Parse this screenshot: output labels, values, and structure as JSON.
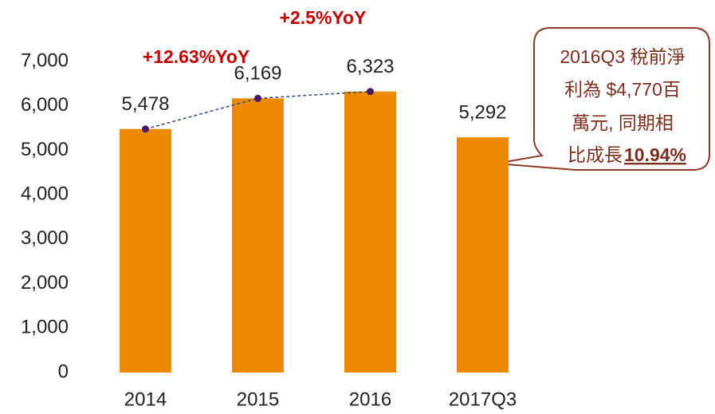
{
  "chart_data": {
    "type": "bar",
    "categories": [
      "2014",
      "2015",
      "2016",
      "2017Q3"
    ],
    "values": [
      5478,
      6169,
      6323,
      5292
    ],
    "value_labels": [
      "5,478",
      "6,169",
      "6,323",
      "5,292"
    ],
    "color": "#ed8b00",
    "ylim": [
      0,
      7000
    ],
    "yticks": [
      0,
      {
        "value": 1000,
        "label": "1,000"
      },
      {
        "value": 2000,
        "label": "2,000"
      },
      {
        "value": 3000,
        "label": "3,000"
      },
      {
        "value": 4000,
        "label": "4,000"
      },
      {
        "value": 5000,
        "label": "5,000"
      },
      {
        "value": 6000,
        "label": "6,000"
      },
      {
        "value": 7000,
        "label": "7,000"
      }
    ],
    "grid": false,
    "annotations": [
      "+12.63%YoY",
      "+2.5%YoY"
    ],
    "callout": {
      "lines": [
        "2016Q3 稅前淨",
        "利為 $4,770百",
        "萬元, 同期相",
        "比成長"
      ],
      "highlight": "10.94%"
    }
  }
}
